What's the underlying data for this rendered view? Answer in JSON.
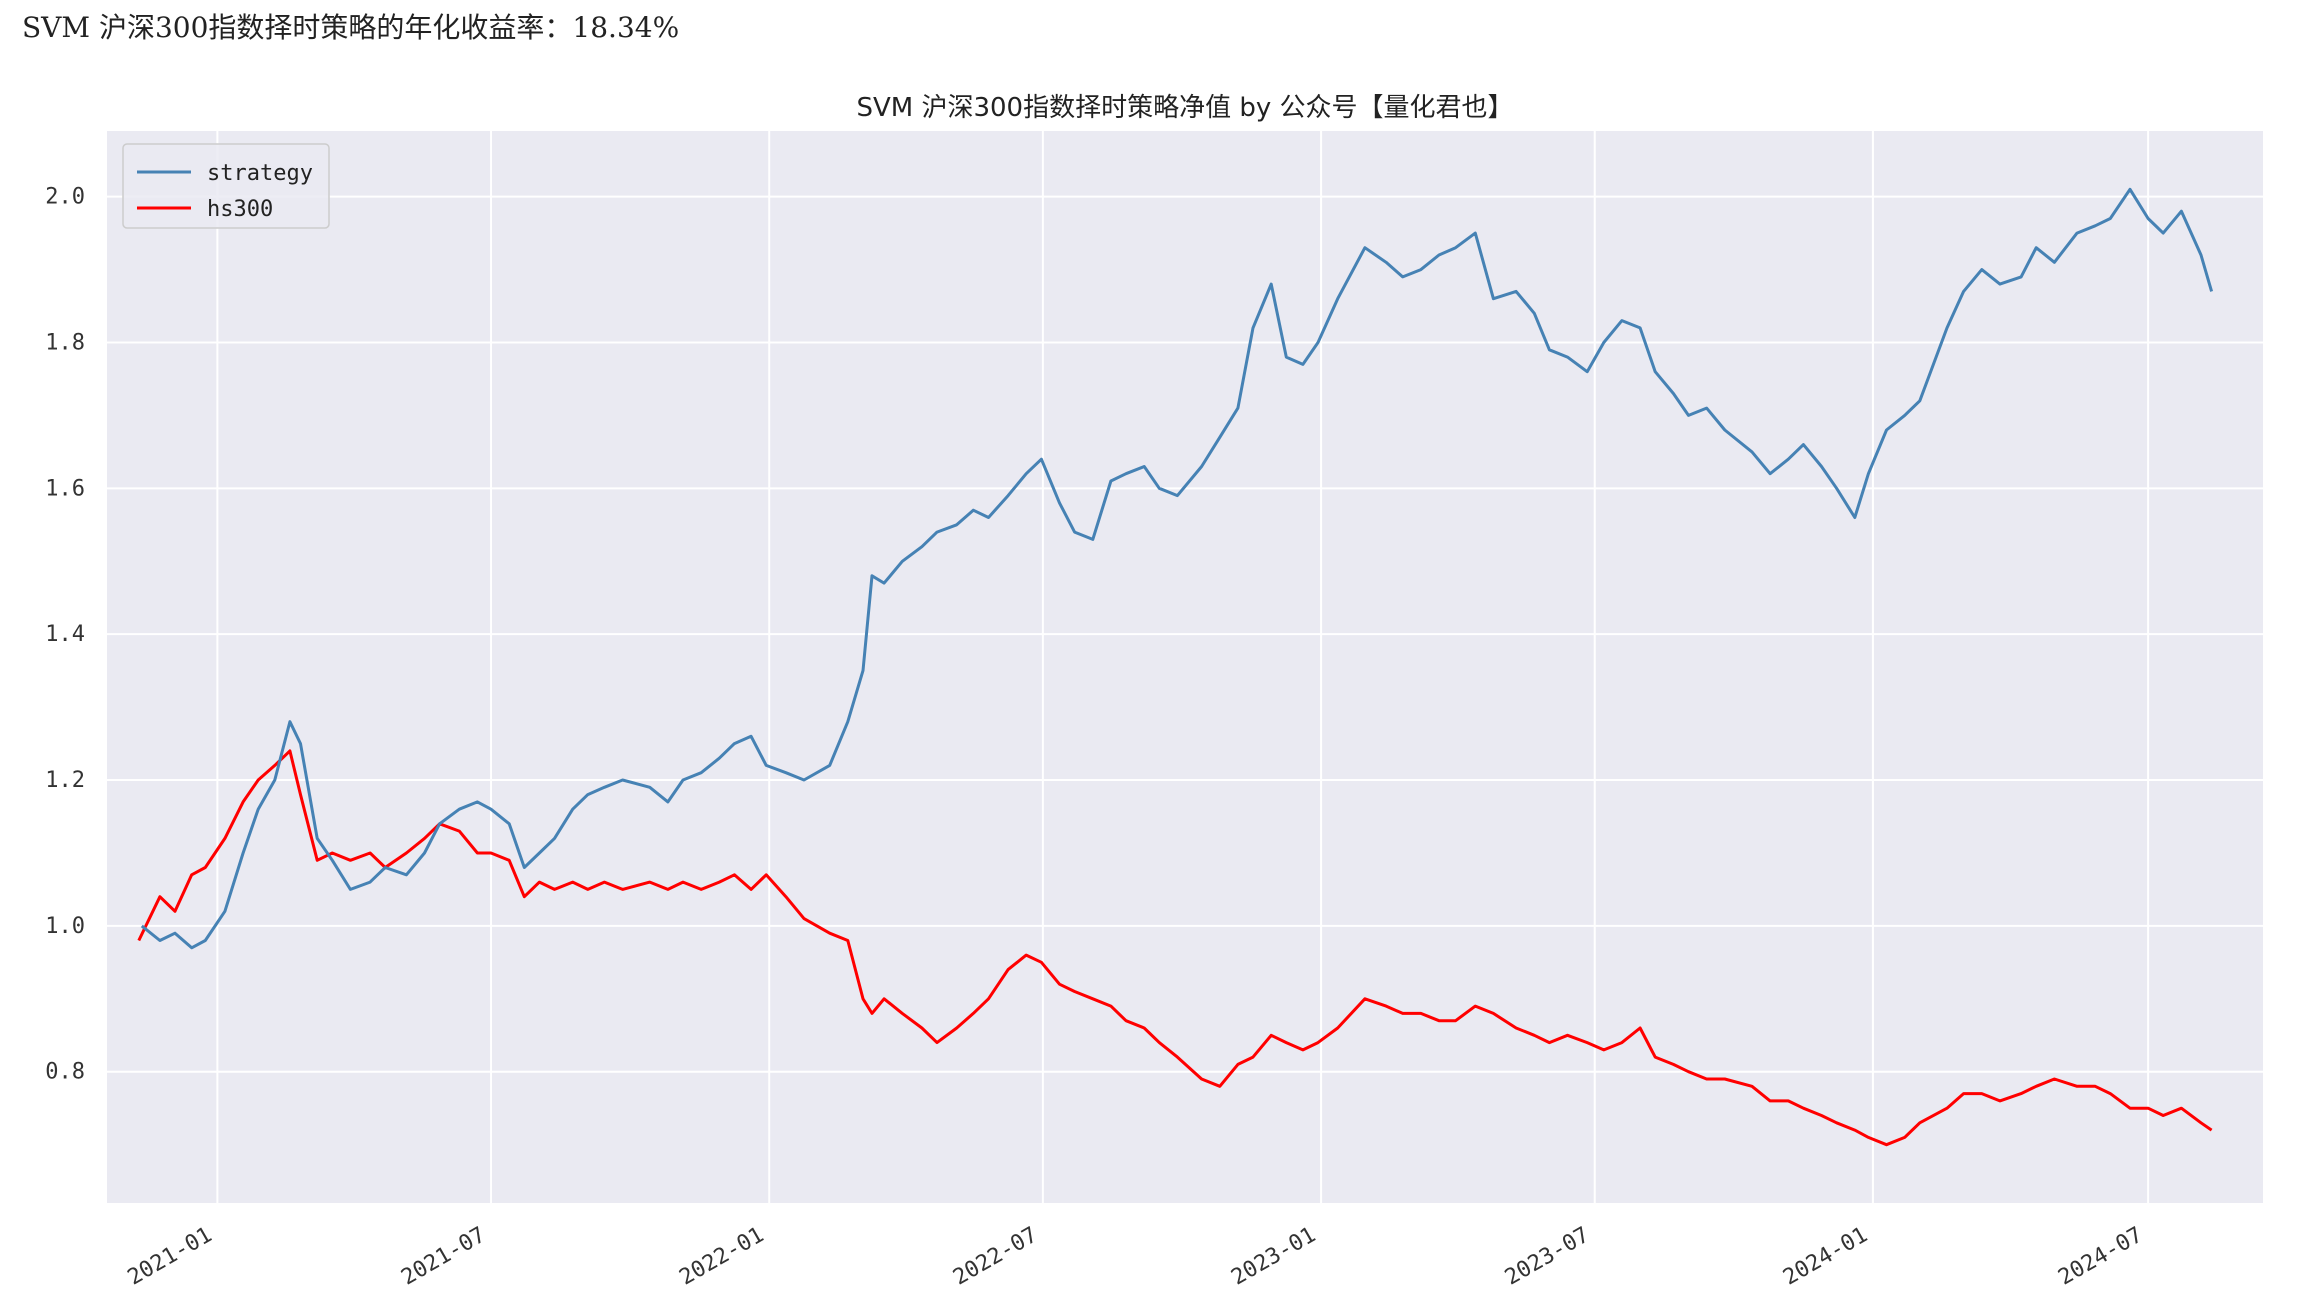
{
  "header": {
    "annual_return_text": "SVM 沪深300指数择时策略的年化收益率：18.34%"
  },
  "chart_data": {
    "type": "line",
    "title": "SVM 沪深300指数择时策略净值  by 公众号【量化君也】",
    "xlabel": "",
    "ylabel": "",
    "x_range": [
      "2020-10-20",
      "2024-09-15"
    ],
    "ylim": [
      0.62,
      2.09
    ],
    "y_ticks": [
      0.8,
      1.0,
      1.2,
      1.4,
      1.6,
      1.8,
      2.0
    ],
    "y_tick_labels": [
      "0.8",
      "1.0",
      "1.2",
      "1.4",
      "1.6",
      "1.8",
      "2.0"
    ],
    "x_ticks": [
      "2021-01-01",
      "2021-07-01",
      "2022-01-01",
      "2022-07-01",
      "2023-01-01",
      "2023-07-01",
      "2024-01-01",
      "2024-07-01"
    ],
    "x_tick_labels": [
      "2021-01",
      "2021-07",
      "2022-01",
      "2022-07",
      "2023-01",
      "2023-07",
      "2024-01",
      "2024-07"
    ],
    "grid": true,
    "legend_position": "top-left",
    "series": [
      {
        "name": "strategy",
        "color": "#4682b4",
        "x": [
          "2020-11-12",
          "2020-11-24",
          "2020-12-04",
          "2020-12-15",
          "2020-12-24",
          "2021-01-06",
          "2021-01-18",
          "2021-01-28",
          "2021-02-08",
          "2021-02-18",
          "2021-02-25",
          "2021-03-08",
          "2021-03-18",
          "2021-03-30",
          "2021-04-12",
          "2021-04-22",
          "2021-05-06",
          "2021-05-18",
          "2021-05-28",
          "2021-06-10",
          "2021-06-22",
          "2021-07-01",
          "2021-07-13",
          "2021-07-23",
          "2021-08-02",
          "2021-08-12",
          "2021-08-24",
          "2021-09-03",
          "2021-09-14",
          "2021-09-26",
          "2021-10-14",
          "2021-10-26",
          "2021-11-05",
          "2021-11-17",
          "2021-11-29",
          "2021-12-09",
          "2021-12-20",
          "2021-12-30",
          "2022-01-12",
          "2022-01-24",
          "2022-02-10",
          "2022-02-22",
          "2022-03-04",
          "2022-03-10",
          "2022-03-18",
          "2022-03-30",
          "2022-04-12",
          "2022-04-22",
          "2022-05-05",
          "2022-05-16",
          "2022-05-26",
          "2022-06-08",
          "2022-06-20",
          "2022-06-30",
          "2022-07-12",
          "2022-07-22",
          "2022-08-03",
          "2022-08-15",
          "2022-08-25",
          "2022-09-06",
          "2022-09-16",
          "2022-09-28",
          "2022-10-14",
          "2022-10-26",
          "2022-11-07",
          "2022-11-17",
          "2022-11-29",
          "2022-12-09",
          "2022-12-20",
          "2022-12-30",
          "2023-01-12",
          "2023-01-30",
          "2023-02-13",
          "2023-02-24",
          "2023-03-08",
          "2023-03-20",
          "2023-03-31",
          "2023-04-13",
          "2023-04-25",
          "2023-05-10",
          "2023-05-22",
          "2023-06-01",
          "2023-06-13",
          "2023-06-26",
          "2023-07-07",
          "2023-07-19",
          "2023-07-31",
          "2023-08-10",
          "2023-08-22",
          "2023-09-01",
          "2023-09-13",
          "2023-09-25",
          "2023-10-13",
          "2023-10-25",
          "2023-11-06",
          "2023-11-16",
          "2023-11-28",
          "2023-12-08",
          "2023-12-20",
          "2023-12-29",
          "2024-01-10",
          "2024-01-22",
          "2024-02-01",
          "2024-02-19",
          "2024-03-01",
          "2024-03-13",
          "2024-03-25",
          "2024-04-08",
          "2024-04-18",
          "2024-04-30",
          "2024-05-15",
          "2024-05-27",
          "2024-06-06",
          "2024-06-19",
          "2024-07-01",
          "2024-07-11",
          "2024-07-23",
          "2024-08-05",
          "2024-08-12"
        ],
        "values": [
          1.0,
          0.98,
          0.99,
          0.97,
          0.98,
          1.02,
          1.1,
          1.16,
          1.2,
          1.28,
          1.25,
          1.12,
          1.09,
          1.05,
          1.06,
          1.08,
          1.07,
          1.1,
          1.14,
          1.16,
          1.17,
          1.16,
          1.14,
          1.08,
          1.1,
          1.12,
          1.16,
          1.18,
          1.19,
          1.2,
          1.19,
          1.17,
          1.2,
          1.21,
          1.23,
          1.25,
          1.26,
          1.22,
          1.21,
          1.2,
          1.22,
          1.28,
          1.35,
          1.48,
          1.47,
          1.5,
          1.52,
          1.54,
          1.55,
          1.57,
          1.56,
          1.59,
          1.62,
          1.64,
          1.58,
          1.54,
          1.53,
          1.61,
          1.62,
          1.63,
          1.6,
          1.59,
          1.63,
          1.67,
          1.71,
          1.82,
          1.88,
          1.78,
          1.77,
          1.8,
          1.86,
          1.93,
          1.91,
          1.89,
          1.9,
          1.92,
          1.93,
          1.95,
          1.86,
          1.87,
          1.84,
          1.79,
          1.78,
          1.76,
          1.8,
          1.83,
          1.82,
          1.76,
          1.73,
          1.7,
          1.71,
          1.68,
          1.65,
          1.62,
          1.64,
          1.66,
          1.63,
          1.6,
          1.56,
          1.62,
          1.68,
          1.7,
          1.72,
          1.82,
          1.87,
          1.9,
          1.88,
          1.89,
          1.93,
          1.91,
          1.95,
          1.96,
          1.97,
          2.01,
          1.97,
          1.95,
          1.98,
          1.92,
          1.87
        ]
      },
      {
        "name": "hs300",
        "color": "#ff0000",
        "x": [
          "2020-11-10",
          "2020-11-24",
          "2020-12-04",
          "2020-12-15",
          "2020-12-24",
          "2021-01-06",
          "2021-01-18",
          "2021-01-28",
          "2021-02-08",
          "2021-02-18",
          "2021-02-25",
          "2021-03-08",
          "2021-03-18",
          "2021-03-30",
          "2021-04-12",
          "2021-04-22",
          "2021-05-06",
          "2021-05-18",
          "2021-05-28",
          "2021-06-10",
          "2021-06-22",
          "2021-07-01",
          "2021-07-13",
          "2021-07-23",
          "2021-08-02",
          "2021-08-12",
          "2021-08-24",
          "2021-09-03",
          "2021-09-14",
          "2021-09-26",
          "2021-10-14",
          "2021-10-26",
          "2021-11-05",
          "2021-11-17",
          "2021-11-29",
          "2021-12-09",
          "2021-12-20",
          "2021-12-30",
          "2022-01-12",
          "2022-01-24",
          "2022-02-10",
          "2022-02-22",
          "2022-03-04",
          "2022-03-10",
          "2022-03-18",
          "2022-03-30",
          "2022-04-12",
          "2022-04-22",
          "2022-05-05",
          "2022-05-16",
          "2022-05-26",
          "2022-06-08",
          "2022-06-20",
          "2022-06-30",
          "2022-07-12",
          "2022-07-22",
          "2022-08-03",
          "2022-08-15",
          "2022-08-25",
          "2022-09-06",
          "2022-09-16",
          "2022-09-28",
          "2022-10-14",
          "2022-10-26",
          "2022-11-07",
          "2022-11-17",
          "2022-11-29",
          "2022-12-09",
          "2022-12-20",
          "2022-12-30",
          "2023-01-12",
          "2023-01-30",
          "2023-02-13",
          "2023-02-24",
          "2023-03-08",
          "2023-03-20",
          "2023-03-31",
          "2023-04-13",
          "2023-04-25",
          "2023-05-10",
          "2023-05-22",
          "2023-06-01",
          "2023-06-13",
          "2023-06-26",
          "2023-07-07",
          "2023-07-19",
          "2023-07-31",
          "2023-08-10",
          "2023-08-22",
          "2023-09-01",
          "2023-09-13",
          "2023-09-25",
          "2023-10-13",
          "2023-10-25",
          "2023-11-06",
          "2023-11-16",
          "2023-11-28",
          "2023-12-08",
          "2023-12-20",
          "2023-12-29",
          "2024-01-10",
          "2024-01-22",
          "2024-02-01",
          "2024-02-19",
          "2024-03-01",
          "2024-03-13",
          "2024-03-25",
          "2024-04-08",
          "2024-04-18",
          "2024-04-30",
          "2024-05-15",
          "2024-05-27",
          "2024-06-06",
          "2024-06-19",
          "2024-07-01",
          "2024-07-11",
          "2024-07-23",
          "2024-08-05",
          "2024-08-12"
        ],
        "values": [
          0.98,
          1.04,
          1.02,
          1.07,
          1.08,
          1.12,
          1.17,
          1.2,
          1.22,
          1.24,
          1.18,
          1.09,
          1.1,
          1.09,
          1.1,
          1.08,
          1.1,
          1.12,
          1.14,
          1.13,
          1.1,
          1.1,
          1.09,
          1.04,
          1.06,
          1.05,
          1.06,
          1.05,
          1.06,
          1.05,
          1.06,
          1.05,
          1.06,
          1.05,
          1.06,
          1.07,
          1.05,
          1.07,
          1.04,
          1.01,
          0.99,
          0.98,
          0.9,
          0.88,
          0.9,
          0.88,
          0.86,
          0.84,
          0.86,
          0.88,
          0.9,
          0.94,
          0.96,
          0.95,
          0.92,
          0.91,
          0.9,
          0.89,
          0.87,
          0.86,
          0.84,
          0.82,
          0.79,
          0.78,
          0.81,
          0.82,
          0.85,
          0.84,
          0.83,
          0.84,
          0.86,
          0.9,
          0.89,
          0.88,
          0.88,
          0.87,
          0.87,
          0.89,
          0.88,
          0.86,
          0.85,
          0.84,
          0.85,
          0.84,
          0.83,
          0.84,
          0.86,
          0.82,
          0.81,
          0.8,
          0.79,
          0.79,
          0.78,
          0.76,
          0.76,
          0.75,
          0.74,
          0.73,
          0.72,
          0.71,
          0.7,
          0.71,
          0.73,
          0.75,
          0.77,
          0.77,
          0.76,
          0.77,
          0.78,
          0.79,
          0.78,
          0.78,
          0.77,
          0.75,
          0.75,
          0.74,
          0.75,
          0.73,
          0.72
        ]
      }
    ]
  }
}
